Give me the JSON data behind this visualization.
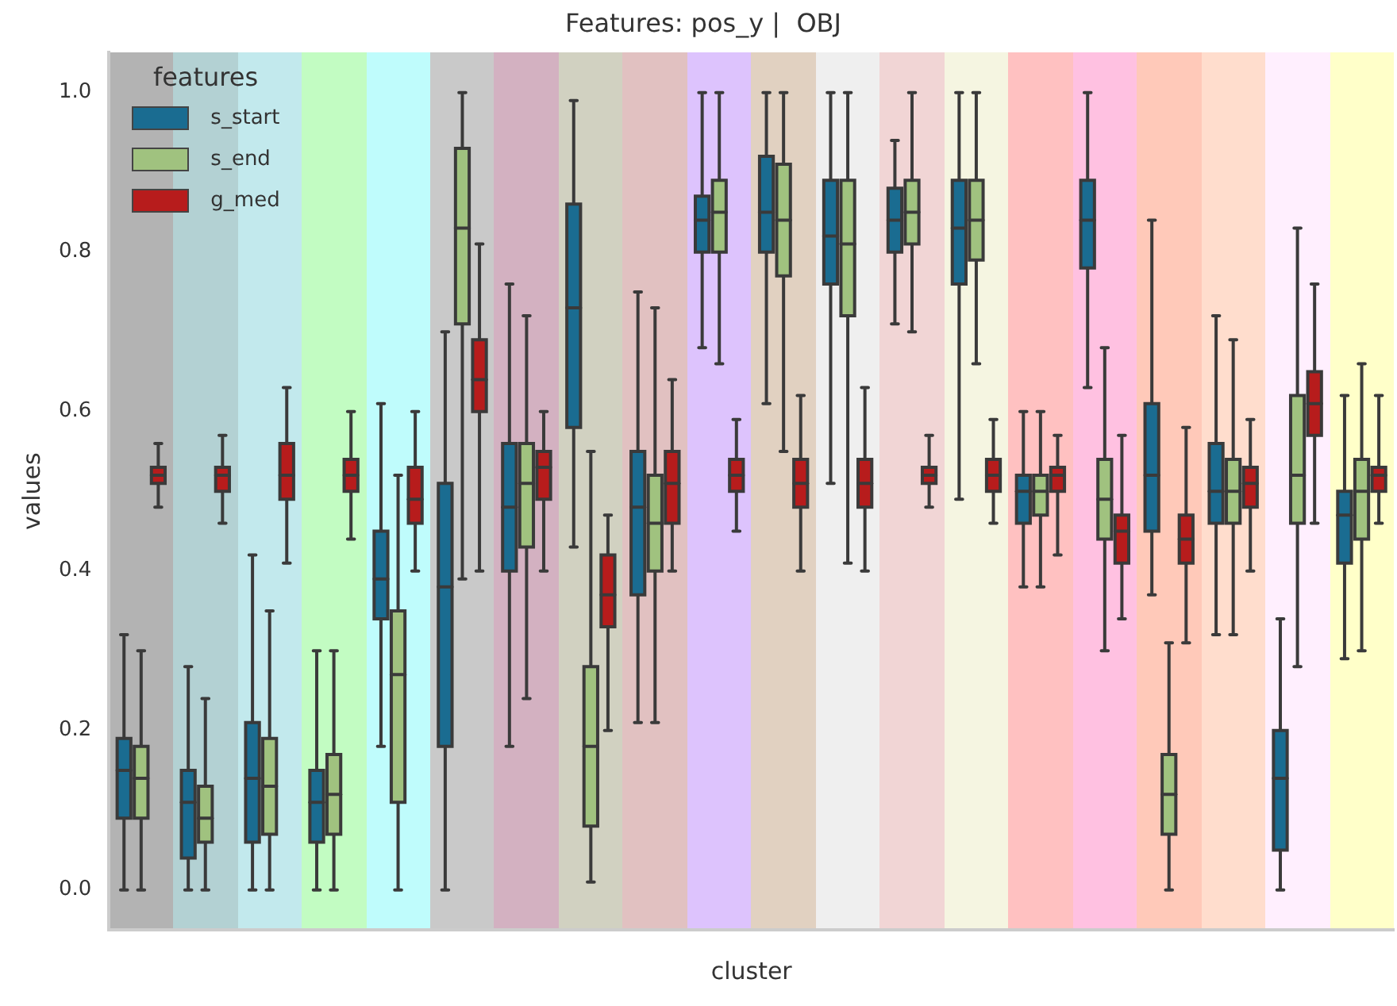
{
  "chart_data": {
    "type": "box",
    "title": "Features: pos_y |  OBJ",
    "xlabel": "cluster",
    "ylabel": "values",
    "legend_title": "features",
    "legend": "top left",
    "grid": false,
    "tick_labels": "y",
    "categories": [
      null,
      null,
      null,
      null,
      null,
      null,
      null,
      null,
      null,
      null,
      null,
      null,
      null,
      null,
      null,
      null,
      null,
      null,
      null,
      null
    ],
    "ylim": [
      -0.05,
      1.05
    ],
    "yticks": [
      {
        "value": 0,
        "label": "0.0"
      },
      {
        "value": 0.2,
        "label": "0.2"
      },
      {
        "value": 0.4,
        "label": "0.4"
      },
      {
        "value": 0.6,
        "label": "0.6"
      },
      {
        "value": 0.8,
        "label": "0.8"
      },
      {
        "value": 1,
        "label": "1.0"
      }
    ],
    "series": [
      {
        "name": "s_start",
        "color": "#1a6c91",
        "boxes": [
          {
            "low": 0,
            "q1": 0.09,
            "median": 0.15,
            "q3": 0.19,
            "high": 0.32
          },
          {
            "low": 0,
            "q1": 0.04,
            "median": 0.11,
            "q3": 0.15,
            "high": 0.28
          },
          {
            "low": 0,
            "q1": 0.06,
            "median": 0.14,
            "q3": 0.21,
            "high": 0.42
          },
          {
            "low": 0,
            "q1": 0.06,
            "median": 0.11,
            "q3": 0.15,
            "high": 0.3
          },
          {
            "low": 0.18,
            "q1": 0.34,
            "median": 0.39,
            "q3": 0.45,
            "high": 0.61
          },
          {
            "low": 0,
            "q1": 0.18,
            "median": 0.38,
            "q3": 0.51,
            "high": 0.7
          },
          {
            "low": 0.18,
            "q1": 0.4,
            "median": 0.48,
            "q3": 0.56,
            "high": 0.76
          },
          {
            "low": 0.43,
            "q1": 0.58,
            "median": 0.73,
            "q3": 0.86,
            "high": 0.99
          },
          {
            "low": 0.21,
            "q1": 0.37,
            "median": 0.48,
            "q3": 0.55,
            "high": 0.75
          },
          {
            "low": 0.68,
            "q1": 0.8,
            "median": 0.84,
            "q3": 0.87,
            "high": 1
          },
          {
            "low": 0.61,
            "q1": 0.8,
            "median": 0.85,
            "q3": 0.92,
            "high": 1
          },
          {
            "low": 0.51,
            "q1": 0.76,
            "median": 0.82,
            "q3": 0.89,
            "high": 1
          },
          {
            "low": 0.71,
            "q1": 0.8,
            "median": 0.84,
            "q3": 0.88,
            "high": 0.94
          },
          {
            "low": 0.49,
            "q1": 0.76,
            "median": 0.83,
            "q3": 0.89,
            "high": 1
          },
          {
            "low": 0.38,
            "q1": 0.46,
            "median": 0.5,
            "q3": 0.52,
            "high": 0.6
          },
          {
            "low": 0.63,
            "q1": 0.78,
            "median": 0.84,
            "q3": 0.89,
            "high": 1
          },
          {
            "low": 0.37,
            "q1": 0.45,
            "median": 0.52,
            "q3": 0.61,
            "high": 0.84
          },
          {
            "low": 0.32,
            "q1": 0.46,
            "median": 0.5,
            "q3": 0.56,
            "high": 0.72
          },
          {
            "low": 0,
            "q1": 0.05,
            "median": 0.14,
            "q3": 0.2,
            "high": 0.34
          },
          {
            "low": 0.29,
            "q1": 0.41,
            "median": 0.47,
            "q3": 0.5,
            "high": 0.62
          }
        ]
      },
      {
        "name": "s_end",
        "color": "#a0c27f",
        "boxes": [
          {
            "low": 0,
            "q1": 0.09,
            "median": 0.14,
            "q3": 0.18,
            "high": 0.3
          },
          {
            "low": 0,
            "q1": 0.06,
            "median": 0.09,
            "q3": 0.13,
            "high": 0.24
          },
          {
            "low": 0,
            "q1": 0.07,
            "median": 0.13,
            "q3": 0.19,
            "high": 0.35
          },
          {
            "low": 0,
            "q1": 0.07,
            "median": 0.12,
            "q3": 0.17,
            "high": 0.3
          },
          {
            "low": 0,
            "q1": 0.11,
            "median": 0.27,
            "q3": 0.35,
            "high": 0.52
          },
          {
            "low": 0.39,
            "q1": 0.71,
            "median": 0.83,
            "q3": 0.93,
            "high": 1
          },
          {
            "low": 0.24,
            "q1": 0.43,
            "median": 0.51,
            "q3": 0.56,
            "high": 0.72
          },
          {
            "low": 0.01,
            "q1": 0.08,
            "median": 0.18,
            "q3": 0.28,
            "high": 0.55
          },
          {
            "low": 0.21,
            "q1": 0.4,
            "median": 0.46,
            "q3": 0.52,
            "high": 0.73
          },
          {
            "low": 0.66,
            "q1": 0.8,
            "median": 0.85,
            "q3": 0.89,
            "high": 1
          },
          {
            "low": 0.55,
            "q1": 0.77,
            "median": 0.84,
            "q3": 0.91,
            "high": 1
          },
          {
            "low": 0.41,
            "q1": 0.72,
            "median": 0.81,
            "q3": 0.89,
            "high": 1
          },
          {
            "low": 0.7,
            "q1": 0.81,
            "median": 0.85,
            "q3": 0.89,
            "high": 1
          },
          {
            "low": 0.66,
            "q1": 0.79,
            "median": 0.84,
            "q3": 0.89,
            "high": 1
          },
          {
            "low": 0.38,
            "q1": 0.47,
            "median": 0.5,
            "q3": 0.52,
            "high": 0.6
          },
          {
            "low": 0.3,
            "q1": 0.44,
            "median": 0.49,
            "q3": 0.54,
            "high": 0.68
          },
          {
            "low": 0,
            "q1": 0.07,
            "median": 0.12,
            "q3": 0.17,
            "high": 0.31
          },
          {
            "low": 0.32,
            "q1": 0.46,
            "median": 0.5,
            "q3": 0.54,
            "high": 0.69
          },
          {
            "low": 0.28,
            "q1": 0.46,
            "median": 0.52,
            "q3": 0.62,
            "high": 0.83
          },
          {
            "low": 0.3,
            "q1": 0.44,
            "median": 0.5,
            "q3": 0.54,
            "high": 0.66
          }
        ]
      },
      {
        "name": "g_med",
        "color": "#b71c1c",
        "boxes": [
          {
            "low": 0.48,
            "q1": 0.51,
            "median": 0.52,
            "q3": 0.53,
            "high": 0.56
          },
          {
            "low": 0.46,
            "q1": 0.5,
            "median": 0.52,
            "q3": 0.53,
            "high": 0.57
          },
          {
            "low": 0.41,
            "q1": 0.49,
            "median": 0.52,
            "q3": 0.56,
            "high": 0.63
          },
          {
            "low": 0.44,
            "q1": 0.5,
            "median": 0.52,
            "q3": 0.54,
            "high": 0.6
          },
          {
            "low": 0.4,
            "q1": 0.46,
            "median": 0.49,
            "q3": 0.53,
            "high": 0.6
          },
          {
            "low": 0.4,
            "q1": 0.6,
            "median": 0.64,
            "q3": 0.69,
            "high": 0.81
          },
          {
            "low": 0.4,
            "q1": 0.49,
            "median": 0.53,
            "q3": 0.55,
            "high": 0.6
          },
          {
            "low": 0.2,
            "q1": 0.33,
            "median": 0.37,
            "q3": 0.42,
            "high": 0.47
          },
          {
            "low": 0.4,
            "q1": 0.46,
            "median": 0.51,
            "q3": 0.55,
            "high": 0.64
          },
          {
            "low": 0.45,
            "q1": 0.5,
            "median": 0.52,
            "q3": 0.54,
            "high": 0.59
          },
          {
            "low": 0.4,
            "q1": 0.48,
            "median": 0.51,
            "q3": 0.54,
            "high": 0.62
          },
          {
            "low": 0.4,
            "q1": 0.48,
            "median": 0.51,
            "q3": 0.54,
            "high": 0.63
          },
          {
            "low": 0.48,
            "q1": 0.51,
            "median": 0.52,
            "q3": 0.53,
            "high": 0.57
          },
          {
            "low": 0.46,
            "q1": 0.5,
            "median": 0.52,
            "q3": 0.54,
            "high": 0.59
          },
          {
            "low": 0.42,
            "q1": 0.5,
            "median": 0.52,
            "q3": 0.53,
            "high": 0.57
          },
          {
            "low": 0.34,
            "q1": 0.41,
            "median": 0.45,
            "q3": 0.47,
            "high": 0.57
          },
          {
            "low": 0.31,
            "q1": 0.41,
            "median": 0.44,
            "q3": 0.47,
            "high": 0.58
          },
          {
            "low": 0.4,
            "q1": 0.48,
            "median": 0.51,
            "q3": 0.53,
            "high": 0.59
          },
          {
            "low": 0.46,
            "q1": 0.57,
            "median": 0.61,
            "q3": 0.65,
            "high": 0.76
          },
          {
            "low": 0.46,
            "q1": 0.5,
            "median": 0.52,
            "q3": 0.53,
            "high": 0.62
          }
        ]
      }
    ]
  }
}
